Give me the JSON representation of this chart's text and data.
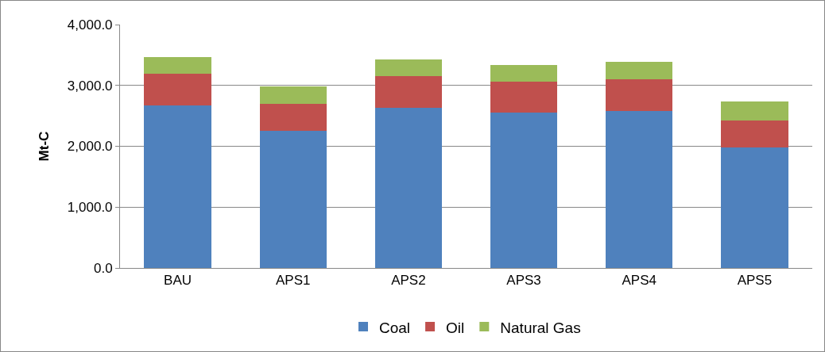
{
  "chart_data": {
    "type": "bar",
    "stacked": true,
    "ylabel": "Mt-C",
    "categories": [
      "BAU",
      "APS1",
      "APS2",
      "APS3",
      "APS4",
      "APS5"
    ],
    "series": [
      {
        "name": "Coal",
        "color": "#4f81bd",
        "values": [
          2670,
          2250,
          2630,
          2550,
          2580,
          1980
        ]
      },
      {
        "name": "Oil",
        "color": "#c0504d",
        "values": [
          520,
          450,
          520,
          510,
          520,
          450
        ]
      },
      {
        "name": "Natural Gas",
        "color": "#9bbb59",
        "values": [
          280,
          280,
          280,
          280,
          290,
          300
        ]
      }
    ],
    "ylim": [
      0,
      4000
    ],
    "yticks": [
      {
        "value": 0,
        "label": "0.0"
      },
      {
        "value": 1000,
        "label": "1,000.0"
      },
      {
        "value": 2000,
        "label": "2,000.0"
      },
      {
        "value": 3000,
        "label": "3,000.0"
      },
      {
        "value": 4000,
        "label": "4,000.0"
      }
    ],
    "grid": "y",
    "legend": "bottom"
  }
}
